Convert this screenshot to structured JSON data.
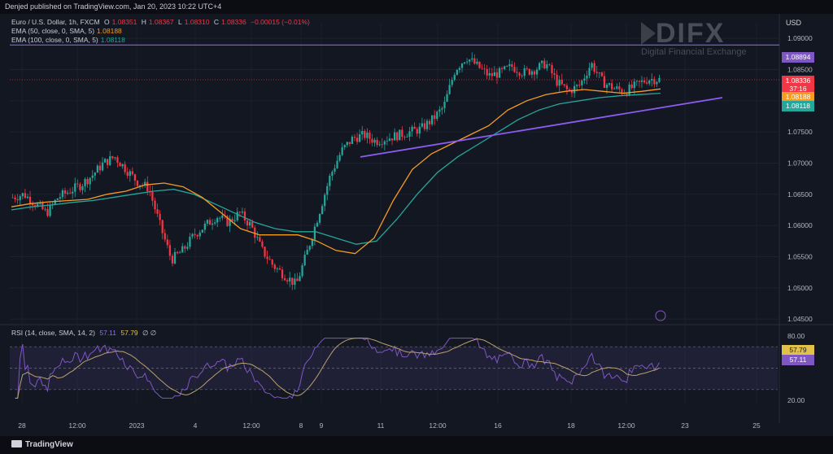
{
  "header": {
    "published": "Denjed published on TradingView.com, Jan 20, 2023 10:22 UTC+4"
  },
  "legend": {
    "symbol": "Euro / U.S. Dollar, 1h, FXCM",
    "o_label": "O",
    "o_value": "1.08351",
    "h_label": "H",
    "h_value": "1.08367",
    "l_label": "L",
    "l_value": "1.08310",
    "c_label": "C",
    "c_value": "1.08336",
    "change": "−0.00015 (−0.01%)",
    "ema50_label": "EMA (50, close, 0, SMA, 5)",
    "ema50_value": "1.08188",
    "ema100_label": "EMA (100, close, 0, SMA, 5)",
    "ema100_value": "1.08118",
    "rsi_label": "RSI (14, close, SMA, 14, 2)",
    "rsi_value": "57.11",
    "rsi_ma_value": "57.79",
    "rsi_extra": "∅ ∅"
  },
  "price_axis": {
    "currency": "USD",
    "ticks": [
      "1.09000",
      "1.08500",
      "1.08000",
      "1.07500",
      "1.07000",
      "1.06500",
      "1.06000",
      "1.05500",
      "1.05000",
      "1.04500"
    ]
  },
  "price_tags": {
    "resistance": "1.08894",
    "last": "1.08336",
    "countdown": "37:16",
    "ema50": "1.08188",
    "ema100": "1.08118"
  },
  "rsi_axis": {
    "ticks": [
      "80.00",
      "20.00"
    ],
    "tags": {
      "rsi_ma": "57.79",
      "rsi": "57.11"
    }
  },
  "time_axis": {
    "ticks": [
      "28",
      "12:00",
      "2023",
      "4",
      "12:00",
      "8",
      "9",
      "11",
      "12:00",
      "16",
      "18",
      "12:00",
      "23",
      "25"
    ]
  },
  "watermark": {
    "brand": "DIFX",
    "subtitle": "Digital Financial Exchange"
  },
  "footer": {
    "logo_text": "TradingView"
  },
  "colors": {
    "up": "#26a69a",
    "down": "#f23645",
    "ema50": "#f59b23",
    "ema100": "#26a69a",
    "trendline": "#8c5cf0",
    "rsi": "#7e57c2",
    "rsi_ma": "#b8a26a"
  },
  "chart_data": {
    "type": "candlestick",
    "symbol": "EURUSD",
    "timeframe": "1h",
    "ylim": [
      1.0445,
      1.0925
    ],
    "x_ticks": [
      "28",
      "12:00",
      "2023",
      "4",
      "12:00",
      "8",
      "9",
      "11",
      "12:00",
      "16",
      "18",
      "12:00",
      "23",
      "25"
    ],
    "close_path": [
      1.0645,
      1.065,
      1.0635,
      1.062,
      1.0645,
      1.0655,
      1.0665,
      1.068,
      1.07,
      1.071,
      1.069,
      1.067,
      1.066,
      1.06,
      1.0545,
      1.056,
      1.0585,
      1.06,
      1.0615,
      1.0605,
      1.062,
      1.06,
      1.056,
      1.0535,
      1.052,
      1.0505,
      1.056,
      1.062,
      1.068,
      1.072,
      1.074,
      1.0745,
      1.0735,
      1.074,
      1.0745,
      1.075,
      1.0755,
      1.077,
      1.079,
      1.085,
      1.087,
      1.0855,
      1.084,
      1.0845,
      1.0855,
      1.0845,
      1.085,
      1.086,
      1.083,
      1.0815,
      1.0825,
      1.086,
      1.083,
      1.082,
      1.0815,
      1.0825,
      1.0835,
      1.0834
    ],
    "ema50_path": [
      1.063,
      1.0635,
      1.0638,
      1.064,
      1.0642,
      1.065,
      1.0655,
      1.0665,
      1.0668,
      1.0662,
      1.0645,
      1.062,
      1.0595,
      1.0585,
      1.0585,
      1.0585,
      1.0575,
      1.056,
      1.0555,
      1.058,
      1.064,
      1.069,
      1.0715,
      1.073,
      1.0745,
      1.076,
      1.0785,
      1.08,
      1.081,
      1.0815,
      1.0818,
      1.0815,
      1.0812,
      1.0815,
      1.0819
    ],
    "ema100_path": [
      1.0625,
      1.063,
      1.0633,
      1.0637,
      1.064,
      1.0645,
      1.065,
      1.0655,
      1.0658,
      1.065,
      1.0635,
      1.062,
      1.0605,
      1.0595,
      1.059,
      1.059,
      1.058,
      1.057,
      1.0575,
      1.061,
      1.065,
      1.0685,
      1.071,
      1.073,
      1.075,
      1.077,
      1.0785,
      1.0795,
      1.08,
      1.0805,
      1.0808,
      1.081,
      1.0812
    ],
    "resistance": 1.08894,
    "trendline": {
      "from": 1.071,
      "to": 1.0805
    },
    "last_price": 1.08336,
    "rsi": {
      "ylim": [
        20,
        80
      ],
      "bands": [
        30,
        70
      ],
      "last": 57.11,
      "ma_last": 57.79
    }
  }
}
